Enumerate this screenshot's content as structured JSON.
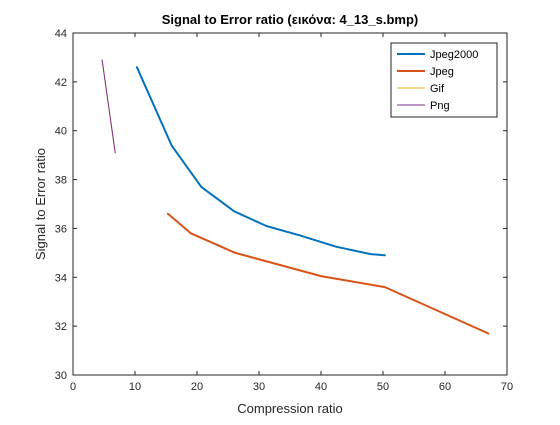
{
  "chart_data": {
    "type": "line",
    "title": "Signal to Error ratio (εικόνα: 4_13_s.bmp)",
    "xlabel": "Compression ratio",
    "ylabel": "Signal to Error ratio",
    "xlim": [
      0,
      70
    ],
    "ylim": [
      30,
      44
    ],
    "xticks": [
      0,
      10,
      20,
      30,
      40,
      50,
      60,
      70
    ],
    "yticks": [
      30,
      32,
      34,
      36,
      38,
      40,
      42,
      44
    ],
    "grid": false,
    "legend_position": "top-right",
    "series": [
      {
        "name": "Jpeg2000",
        "color": "#0072BD",
        "width": 2,
        "x": [
          10.3,
          15.9,
          20.7,
          26.0,
          31.2,
          36.8,
          42.5,
          48.0,
          50.3
        ],
        "y": [
          42.6,
          39.4,
          37.7,
          36.7,
          36.1,
          35.7,
          35.25,
          34.95,
          34.9
        ]
      },
      {
        "name": "Jpeg",
        "color": "#D95319",
        "width": 2,
        "x": [
          15.3,
          19.0,
          26.2,
          40.0,
          50.3,
          67.0
        ],
        "y": [
          36.6,
          35.8,
          35.0,
          34.05,
          33.6,
          31.7
        ]
      },
      {
        "name": "Gif",
        "color": "#EDB120",
        "width": 1,
        "x": [
          4.7,
          6.8
        ],
        "y": [
          42.9,
          39.1
        ]
      },
      {
        "name": "Png",
        "color": "#7E2F8E",
        "width": 1,
        "x": [
          4.7,
          6.8
        ],
        "y": [
          42.9,
          39.1
        ]
      }
    ]
  }
}
